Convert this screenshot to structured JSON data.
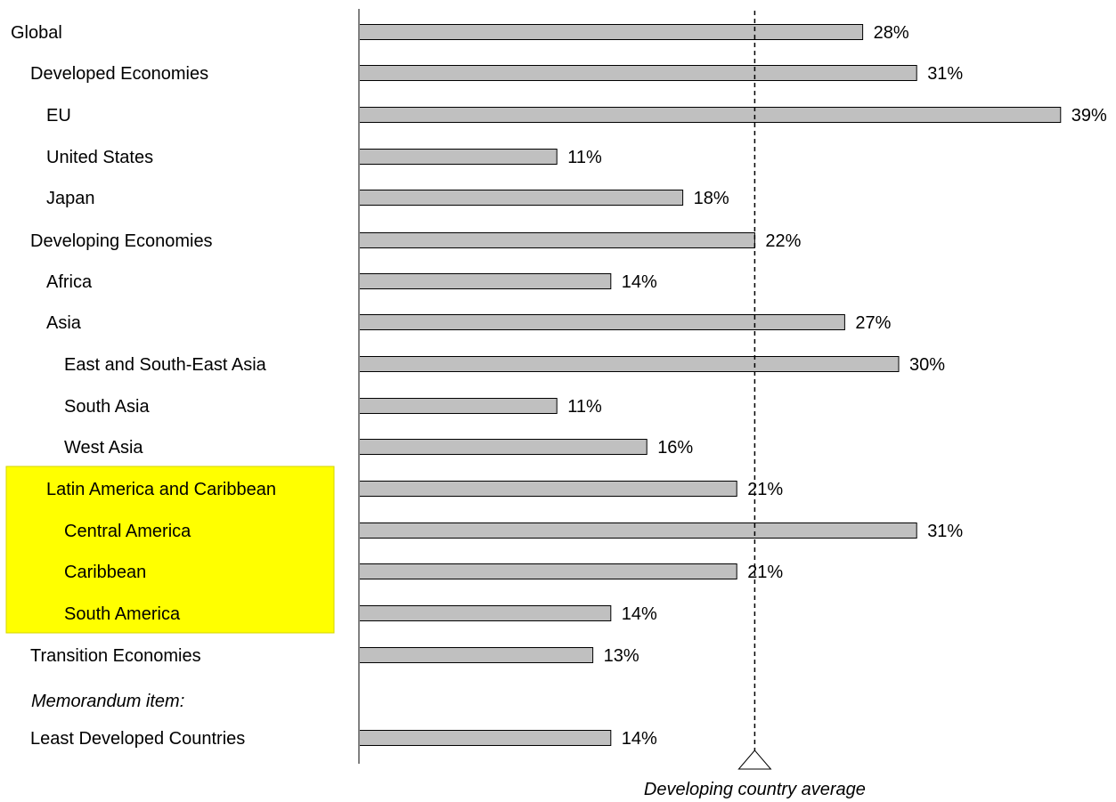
{
  "chart_data": {
    "type": "bar",
    "orientation": "horizontal",
    "unit": "%",
    "xlim": [
      0,
      39
    ],
    "grid": false,
    "categories": [
      "Global",
      "Developed Economies",
      "EU",
      "United States",
      "Japan",
      "Developing Economies",
      "Africa",
      "Asia",
      "East and South-East Asia",
      "South Asia",
      "West Asia",
      "Latin America and Caribbean",
      "Central America",
      "Caribbean",
      "South America",
      "Transition Economies",
      "Least Developed Countries"
    ],
    "values": [
      28,
      31,
      39,
      11,
      18,
      22,
      14,
      27,
      30,
      11,
      16,
      21,
      31,
      21,
      14,
      13,
      14
    ],
    "value_labels": [
      "28%",
      "31%",
      "39%",
      "11%",
      "18%",
      "22%",
      "14%",
      "27%",
      "30%",
      "11%",
      "16%",
      "21%",
      "31%",
      "21%",
      "14%",
      "13%",
      "14%"
    ],
    "indent_levels": [
      0,
      1,
      2,
      2,
      2,
      1,
      2,
      2,
      3,
      3,
      3,
      2,
      3,
      3,
      3,
      1,
      1
    ],
    "highlighted": [
      false,
      false,
      false,
      false,
      false,
      false,
      false,
      false,
      false,
      false,
      false,
      true,
      true,
      true,
      true,
      false,
      false
    ],
    "memorandum_label": "Memorandum item:",
    "reference_line": {
      "value": 22,
      "label": "Developing country average"
    },
    "colors": {
      "bar_fill": "#c0c0c0",
      "bar_stroke": "#000000",
      "highlight_fill": "#ffff00",
      "highlight_stroke": "#d4d400",
      "axis": "#808080"
    }
  }
}
